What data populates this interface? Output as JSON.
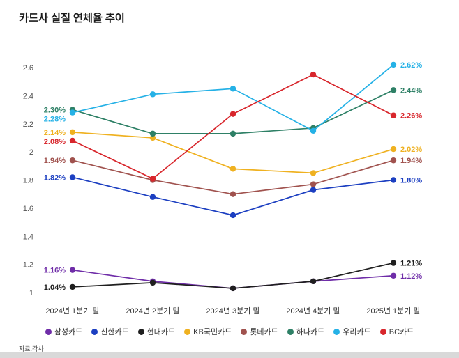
{
  "page": {
    "title": "카드사 실질 연체율 추이",
    "source": "자료:각사"
  },
  "chart_data": {
    "type": "line",
    "title": "카드사 실질 연체율 추이",
    "categories": [
      "2024년 1분기 말",
      "2024년 2분기 말",
      "2024년 3분기 말",
      "2024년 4분기 말",
      "2025년 1분기 말"
    ],
    "ylim": [
      1.0,
      2.6
    ],
    "yticks": [
      1,
      1.2,
      1.4,
      1.6,
      1.8,
      2,
      2.2,
      2.4,
      2.6
    ],
    "grid": false,
    "legend_position": "bottom",
    "series": [
      {
        "name": "삼성카드",
        "color": "#6f2da8",
        "values": [
          1.16,
          1.08,
          1.03,
          1.08,
          1.12
        ],
        "start_label": "1.16%",
        "end_label": "1.12%"
      },
      {
        "name": "신한카드",
        "color": "#1c3fc1",
        "values": [
          1.82,
          1.68,
          1.55,
          1.73,
          1.8
        ],
        "start_label": "1.82%",
        "end_label": "1.80%"
      },
      {
        "name": "현대카드",
        "color": "#1f1f1f",
        "values": [
          1.04,
          1.07,
          1.03,
          1.08,
          1.21
        ],
        "start_label": "1.04%",
        "end_label": "1.21%"
      },
      {
        "name": "KB국민카드",
        "color": "#efb120",
        "values": [
          2.14,
          2.1,
          1.88,
          1.85,
          2.02
        ],
        "start_label": "2.14%",
        "end_label": "2.02%"
      },
      {
        "name": "롯데카드",
        "color": "#a0524e",
        "values": [
          1.94,
          1.8,
          1.7,
          1.77,
          1.94
        ],
        "start_label": "1.94%",
        "end_label": "1.94%"
      },
      {
        "name": "하나카드",
        "color": "#2e8066",
        "values": [
          2.3,
          2.13,
          2.13,
          2.17,
          2.44
        ],
        "start_label": "2.30%",
        "end_label": "2.44%"
      },
      {
        "name": "우리카드",
        "color": "#25b1e6",
        "values": [
          2.28,
          2.41,
          2.45,
          2.15,
          2.62
        ],
        "start_label": "2.28%",
        "end_label": "2.62%"
      },
      {
        "name": "BC카드",
        "color": "#d8262c",
        "values": [
          2.08,
          1.81,
          2.27,
          2.55,
          2.26
        ],
        "start_label": "2.08%",
        "end_label": "2.26%"
      }
    ]
  }
}
